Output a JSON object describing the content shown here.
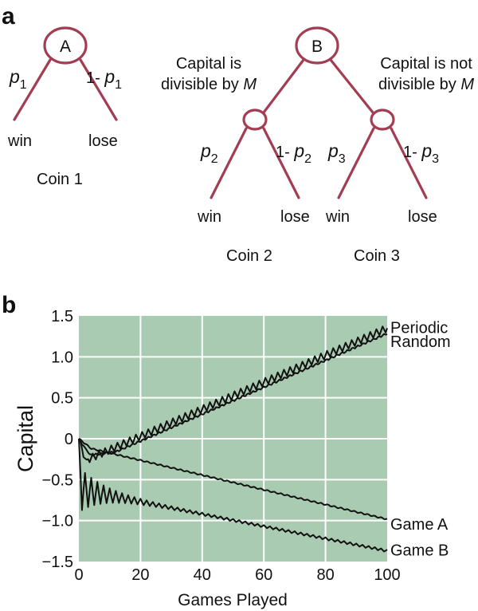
{
  "panel_a": {
    "label": "a",
    "coin1": {
      "node": "A",
      "left_prob": {
        "main": "p",
        "sub": "1"
      },
      "right_prob": {
        "prefix": "1- ",
        "main": "p",
        "sub": "1"
      },
      "left_outcome": "win",
      "right_outcome": "lose",
      "caption": "Coin 1"
    },
    "gameB": {
      "node": "B",
      "left_cond": {
        "line1": "Capital is",
        "line2": "divisible by ",
        "var": "M"
      },
      "right_cond": {
        "line1": "Capital is not",
        "line2": "divisible by ",
        "var": "M"
      },
      "coin2": {
        "left_prob": {
          "main": "p",
          "sub": "2"
        },
        "right_prob": {
          "prefix": "1- ",
          "main": "p",
          "sub": "2"
        },
        "left_outcome": "win",
        "right_outcome": "lose",
        "caption": "Coin 2"
      },
      "coin3": {
        "left_prob": {
          "main": "p",
          "sub": "3"
        },
        "right_prob": {
          "prefix": "1- ",
          "main": "p",
          "sub": "3"
        },
        "left_outcome": "win",
        "right_outcome": "lose",
        "caption": "Coin 3"
      }
    },
    "branch_color": "#a23d52"
  },
  "panel_b": {
    "label": "b",
    "chart_data": {
      "type": "line",
      "xlabel": "Games Played",
      "ylabel": "Capital",
      "xlim": [
        0,
        100
      ],
      "ylim": [
        -1.5,
        1.5
      ],
      "xticks": [
        0,
        20,
        40,
        60,
        80,
        100
      ],
      "yticks": [
        1.5,
        1.0,
        0.5,
        0,
        -0.5,
        -1.0,
        -1.5
      ],
      "ytick_labels": [
        "1.5",
        "1.0",
        "0.5",
        "0",
        "−0.5",
        "−1.0",
        "−1.5"
      ],
      "grid": true,
      "background": "#a9cbb1",
      "grid_color": "#ffffff",
      "line_color": "#111111",
      "series": [
        {
          "name": "Periodic",
          "end_value": 1.35,
          "label_y": 1.36
        },
        {
          "name": "Random",
          "end_value": 1.29,
          "label_y": 1.19
        },
        {
          "name": "Game A",
          "end_value": -1.02,
          "label_y": -1.04
        },
        {
          "name": "Game B",
          "end_value": -1.37,
          "label_y": -1.36
        }
      ]
    }
  }
}
